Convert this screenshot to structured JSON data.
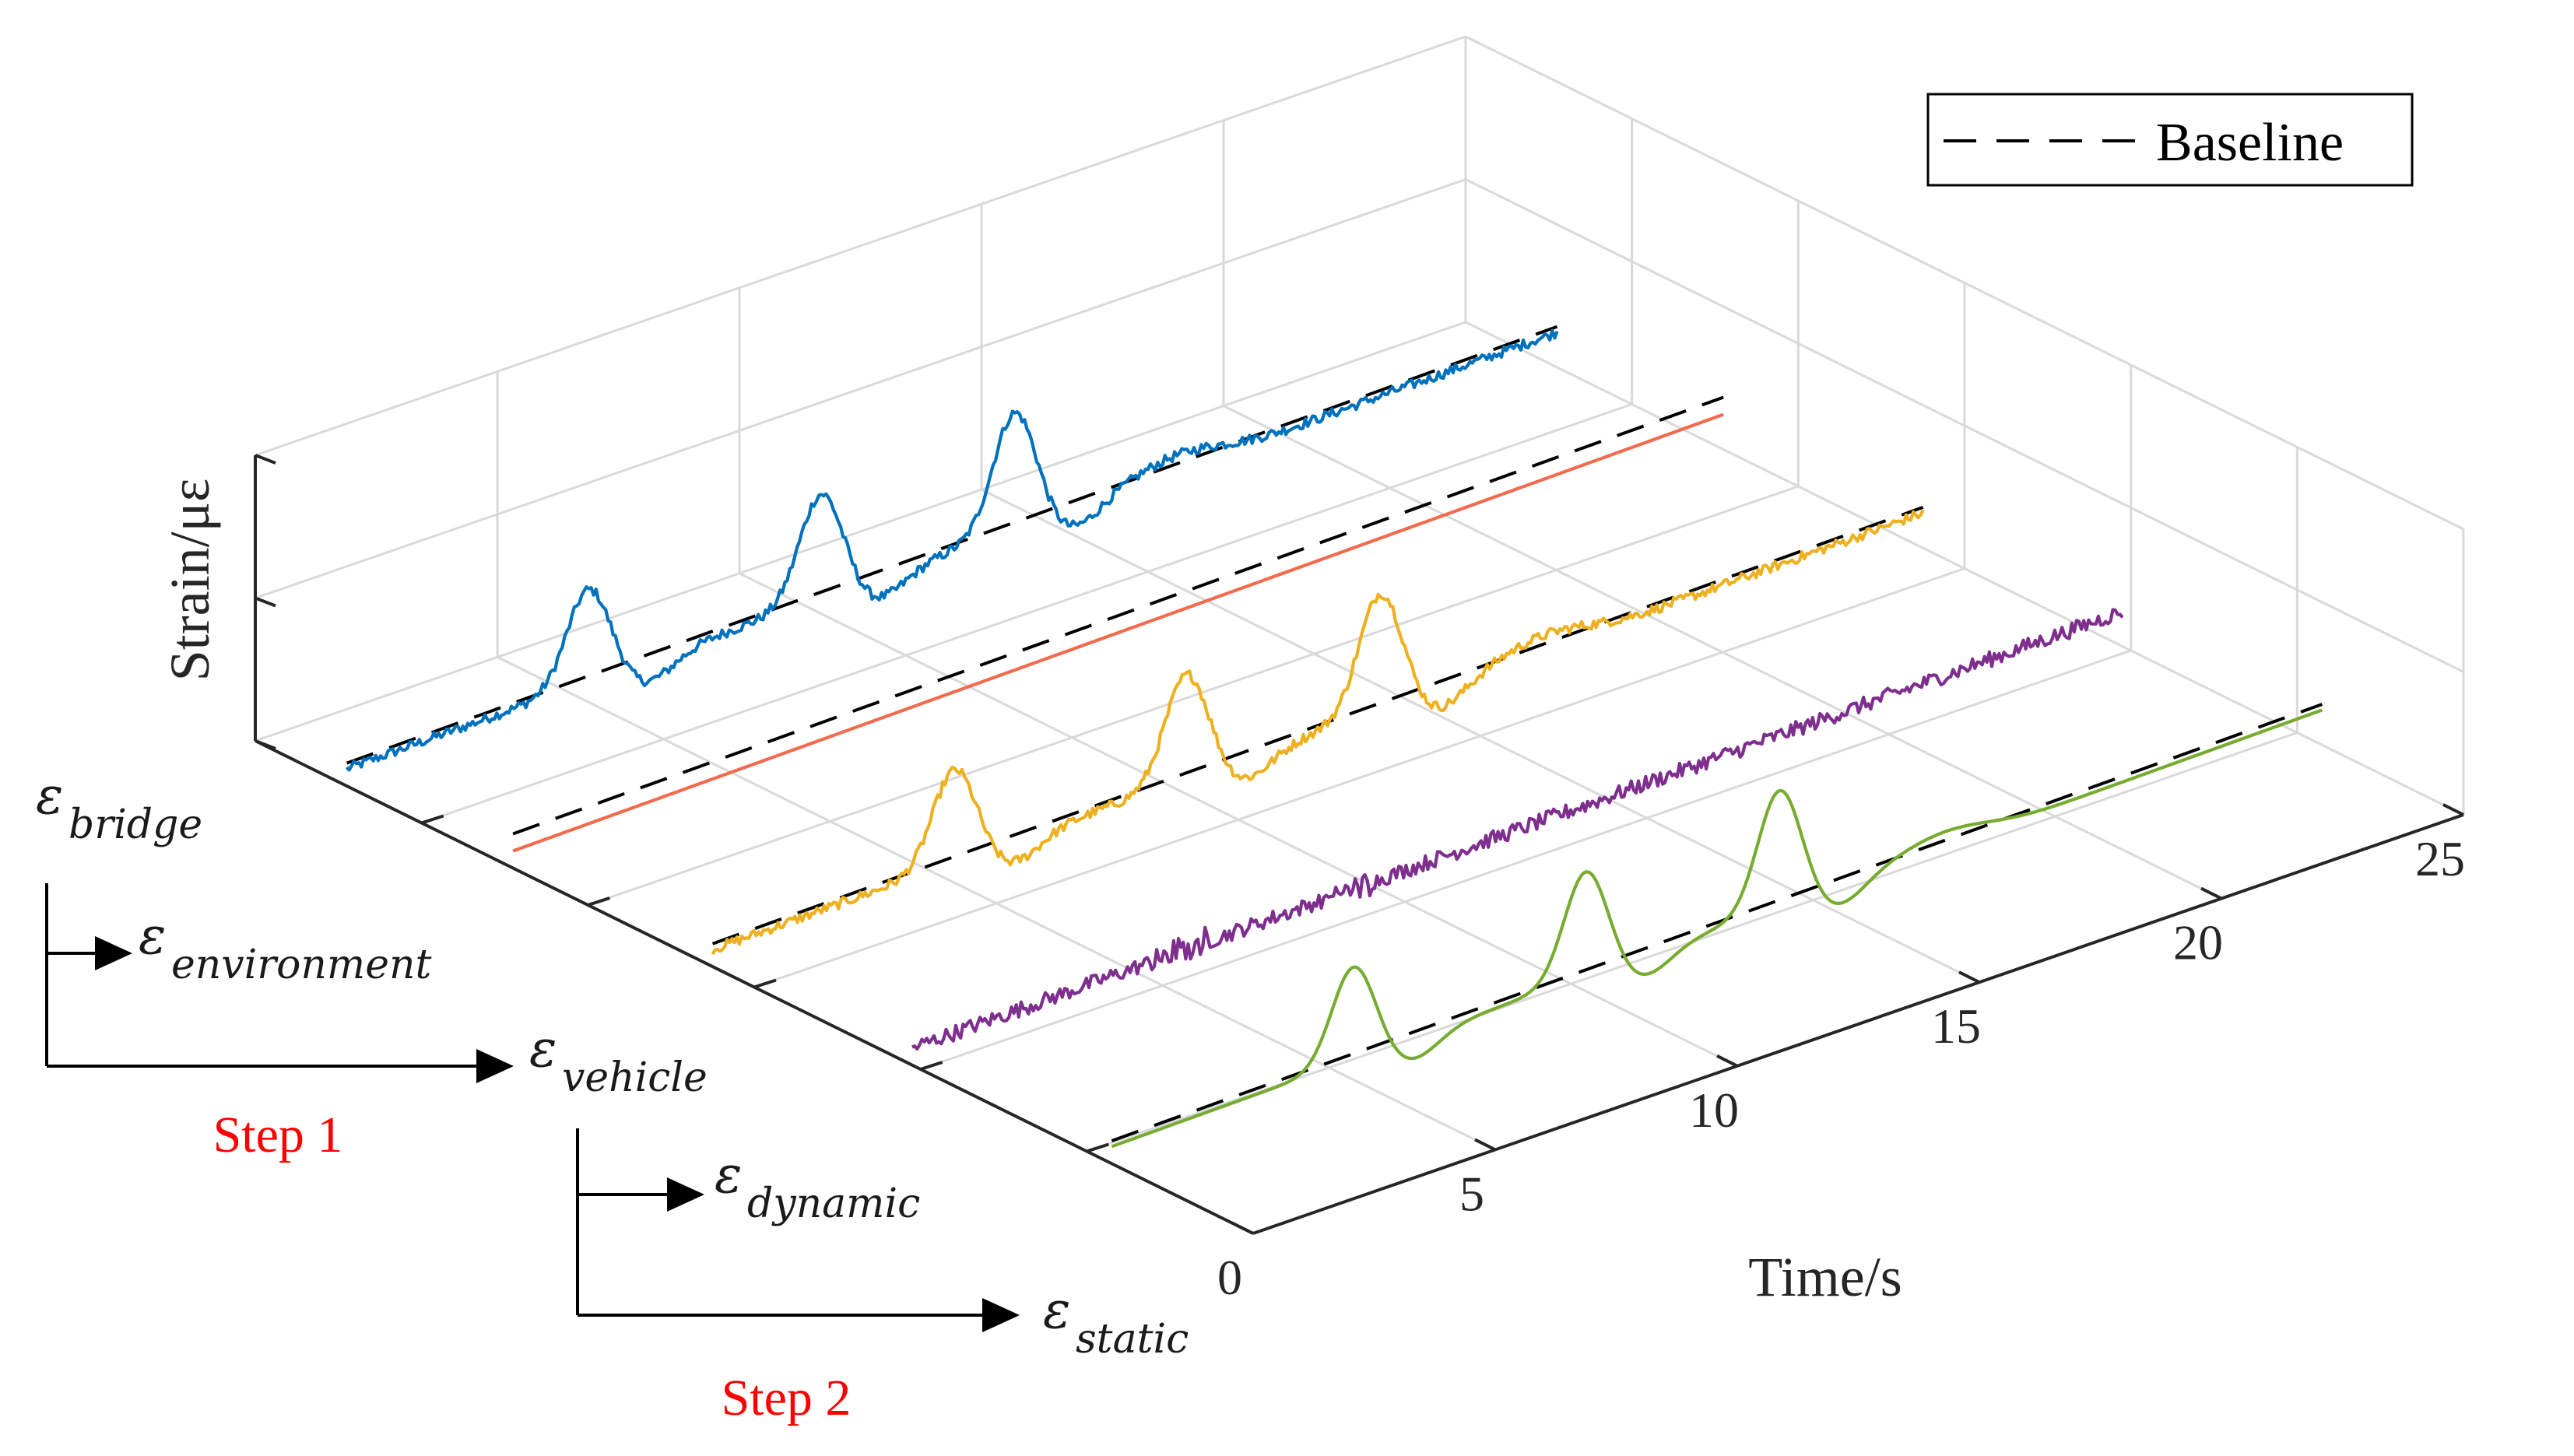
{
  "chart_data": {
    "type": "line",
    "projection": "3d-waterfall",
    "xlabel": "Time/s",
    "ylabel": "",
    "zlabel": "Strain/με",
    "x_ticks": [
      "0",
      "5",
      "10",
      "15",
      "20",
      "25"
    ],
    "xlim": [
      0,
      25
    ],
    "grid": true,
    "legend": {
      "position": "top-right",
      "entries": [
        "Baseline"
      ]
    },
    "series": [
      {
        "name": "εbridge",
        "main": "ε",
        "sub": "bridge",
        "color": "#0072BD",
        "baseline": true,
        "kind": "peaks_noisy",
        "peaks_s": [
          5,
          9.8,
          13.8
        ]
      },
      {
        "name": "εenvironment",
        "main": "ε",
        "sub": "environment",
        "color": "#F26B4F",
        "baseline": true,
        "kind": "linear"
      },
      {
        "name": "εvehicle",
        "main": "ε",
        "sub": "vehicle",
        "color": "#EDB120",
        "baseline": true,
        "kind": "peaks_noisy",
        "peaks_s": [
          5,
          9.8,
          13.8
        ]
      },
      {
        "name": "εdynamic",
        "main": "ε",
        "sub": "dynamic",
        "color": "#7E2F8E",
        "baseline": false,
        "kind": "noise"
      },
      {
        "name": "εstatic",
        "main": "ε",
        "sub": "static",
        "color": "#77AC30",
        "baseline": true,
        "kind": "peaks_smooth",
        "peaks_s": [
          5,
          9.8,
          13.8
        ]
      }
    ],
    "steps": [
      {
        "label": "Step 1",
        "from": "εbridge",
        "to": [
          "εenvironment",
          "εvehicle"
        ]
      },
      {
        "label": "Step 2",
        "from": "εvehicle",
        "to": [
          "εdynamic",
          "εstatic"
        ]
      }
    ]
  },
  "labels": {
    "step_color": "#FF0000"
  }
}
